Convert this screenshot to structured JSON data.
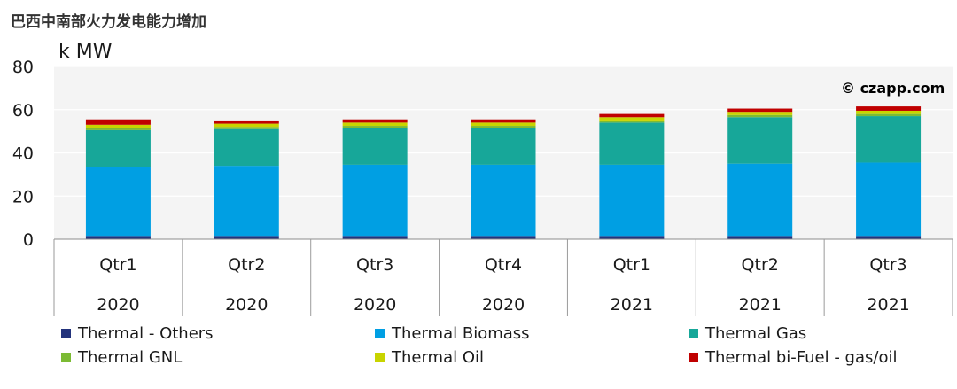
{
  "title": "巴西中南部火力发电能力增加",
  "unit": "k MW",
  "watermark": "© czapp.com",
  "chart_data": {
    "type": "bar",
    "stacked": true,
    "categories": [
      {
        "quarter": "Qtr1",
        "year": "2020"
      },
      {
        "quarter": "Qtr2",
        "year": "2020"
      },
      {
        "quarter": "Qtr3",
        "year": "2020"
      },
      {
        "quarter": "Qtr4",
        "year": "2020"
      },
      {
        "quarter": "Qtr1",
        "year": "2021"
      },
      {
        "quarter": "Qtr2",
        "year": "2021"
      },
      {
        "quarter": "Qtr3",
        "year": "2021"
      }
    ],
    "series": [
      {
        "name": "Thermal - Others",
        "color": "#23337c",
        "values": [
          1.5,
          1.5,
          1.5,
          1.5,
          1.5,
          1.5,
          1.5
        ]
      },
      {
        "name": "Thermal Biomass",
        "color": "#009fe3",
        "values": [
          32.0,
          32.5,
          33.0,
          33.0,
          33.0,
          33.5,
          34.0
        ]
      },
      {
        "name": "Thermal Gas",
        "color": "#17a799",
        "values": [
          17.0,
          17.0,
          17.0,
          17.0,
          19.5,
          21.5,
          21.5
        ]
      },
      {
        "name": "Thermal GNL",
        "color": "#7cbb34",
        "values": [
          1.0,
          1.0,
          1.0,
          1.0,
          1.0,
          1.0,
          1.0
        ]
      },
      {
        "name": "Thermal Oil",
        "color": "#c8d400",
        "values": [
          1.5,
          1.5,
          1.5,
          1.5,
          1.5,
          1.5,
          1.5
        ]
      },
      {
        "name": "Thermal bi-Fuel - gas/oil",
        "color": "#c00000",
        "values": [
          2.5,
          1.5,
          1.5,
          1.5,
          1.5,
          1.5,
          2.0
        ]
      }
    ],
    "ylim": [
      0,
      80
    ],
    "yticks": [
      0,
      20,
      40,
      60,
      80
    ],
    "grid": true,
    "legend_position": "bottom"
  }
}
